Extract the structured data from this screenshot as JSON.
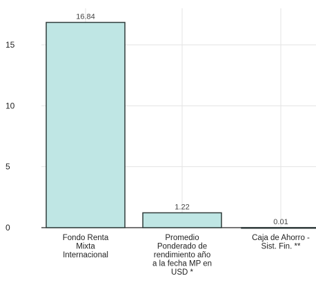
{
  "chart_data": {
    "type": "bar",
    "title": "",
    "xlabel": "",
    "ylabel": "",
    "categories": [
      "Fondo Renta Mixta Internacional",
      "Promedio Ponderado de rendimiento año a la fecha MP en USD *",
      "Caja de Ahorro - Sist. Fin. **"
    ],
    "category_lines": [
      [
        "Fondo Renta",
        "Mixta",
        "Internacional"
      ],
      [
        "Promedio",
        "Ponderado de",
        "rendimiento año",
        "a la fecha MP en",
        "USD *"
      ],
      [
        "Caja de Ahorro -",
        "Sist. Fin. **"
      ]
    ],
    "values": [
      16.84,
      1.22,
      0.01
    ],
    "value_labels": [
      "16.84",
      "1.22",
      "0.01"
    ],
    "ylim": [
      0,
      18
    ],
    "yticks": [
      0,
      5,
      10,
      15
    ],
    "grid": true,
    "legend": "none",
    "colors": {
      "bar_fill": "#bfe6e4",
      "bar_stroke": "#2f3b3a",
      "grid": "#e3e3e3",
      "axis": "#222222"
    }
  }
}
